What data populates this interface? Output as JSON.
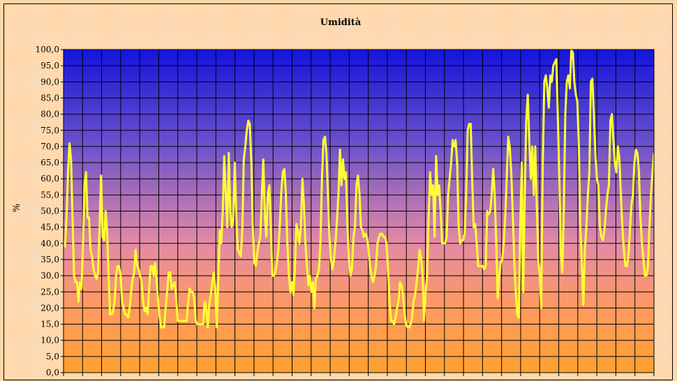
{
  "chart_data": {
    "type": "line",
    "title": "Umidità",
    "ylabel": "%",
    "xlabel": "",
    "ylim": [
      0,
      100
    ],
    "yticks": [
      "0,0",
      "5,0",
      "10,0",
      "15,0",
      "20,0",
      "25,0",
      "30,0",
      "35,0",
      "40,0",
      "45,0",
      "50,0",
      "55,0",
      "60,0",
      "65,0",
      "70,0",
      "75,0",
      "80,0",
      "85,0",
      "90,0",
      "95,0",
      "100,0"
    ],
    "grid": true,
    "legend": "none",
    "colors": {
      "line": "#ffff33",
      "plot_top": "#1414dc",
      "plot_mid": "#e48aa4",
      "plot_bottom": "#ffa030",
      "frame_bg": "#ffd4a6"
    },
    "series": [
      {
        "values": [
          40,
          39,
          48,
          62,
          71,
          66,
          48,
          30,
          28,
          28,
          22,
          28,
          26,
          40,
          58,
          62,
          48,
          48,
          38,
          36,
          32,
          30,
          29,
          31,
          45,
          61,
          42,
          41,
          50,
          44,
          30,
          18,
          18,
          19,
          22,
          30,
          33,
          33,
          30,
          22,
          20,
          18,
          18,
          17,
          20,
          25,
          29,
          31,
          38,
          33,
          32,
          30,
          28,
          22,
          19,
          20,
          18,
          26,
          33,
          33,
          30,
          34,
          28,
          22,
          17,
          14,
          14,
          14,
          20,
          25,
          31,
          31,
          26,
          27,
          28,
          23,
          16,
          16,
          16,
          16,
          16,
          16,
          16,
          22,
          26,
          25,
          25,
          23,
          16,
          15,
          15,
          15,
          15,
          15,
          22,
          20,
          14,
          21,
          24,
          28,
          31,
          26,
          14,
          28,
          44,
          40,
          50,
          67,
          55,
          45,
          68,
          50,
          45,
          48,
          65,
          48,
          38,
          37,
          36,
          44,
          66,
          70,
          75,
          78,
          77,
          65,
          45,
          34,
          33,
          37,
          40,
          42,
          55,
          66,
          48,
          42,
          55,
          58,
          44,
          30,
          30,
          31,
          34,
          38,
          46,
          56,
          62,
          63,
          55,
          40,
          30,
          25,
          28,
          24,
          32,
          46,
          44,
          40,
          45,
          60,
          52,
          40,
          33,
          27,
          30,
          25,
          28,
          20,
          29,
          30,
          32,
          40,
          60,
          72,
          73,
          68,
          55,
          42,
          35,
          32,
          35,
          40,
          47,
          55,
          69,
          58,
          66,
          60,
          62,
          45,
          35,
          30,
          32,
          42,
          45,
          58,
          61,
          55,
          45,
          44,
          42,
          43,
          42,
          38,
          33,
          30,
          28,
          30,
          33,
          40,
          42,
          43,
          43,
          42,
          42,
          40,
          32,
          22,
          16,
          16,
          15,
          17,
          20,
          22,
          28,
          27,
          24,
          18,
          15,
          14,
          14,
          15,
          17,
          22,
          24,
          28,
          32,
          38,
          36,
          30,
          16,
          25,
          30,
          48,
          62,
          55,
          58,
          42,
          67,
          55,
          58,
          50,
          40,
          40,
          40,
          42,
          55,
          60,
          65,
          72,
          70,
          72,
          65,
          45,
          40,
          41,
          41,
          43,
          55,
          75,
          77,
          77,
          60,
          45,
          46,
          40,
          33,
          33,
          33,
          33,
          32,
          33,
          50,
          49,
          50,
          55,
          63,
          55,
          40,
          23,
          30,
          34,
          35,
          40,
          48,
          60,
          73,
          70,
          62,
          50,
          35,
          25,
          18,
          17,
          45,
          65,
          25,
          55,
          78,
          86,
          72,
          60,
          70,
          55,
          70,
          52,
          35,
          30,
          20,
          65,
          90,
          92,
          88,
          82,
          92,
          90,
          95,
          96,
          97,
          80,
          60,
          38,
          31,
          50,
          80,
          90,
          92,
          88,
          100,
          99,
          90,
          86,
          84,
          70,
          45,
          33,
          21,
          38,
          45,
          55,
          62,
          90,
          91,
          80,
          68,
          60,
          58,
          45,
          42,
          41,
          44,
          50,
          55,
          58,
          78,
          80,
          72,
          65,
          62,
          70,
          66,
          55,
          45,
          38,
          33,
          33,
          36,
          44,
          52,
          55,
          65,
          69,
          68,
          62,
          48,
          40,
          35,
          30,
          30,
          33,
          45,
          55,
          62,
          68
        ]
      }
    ]
  }
}
